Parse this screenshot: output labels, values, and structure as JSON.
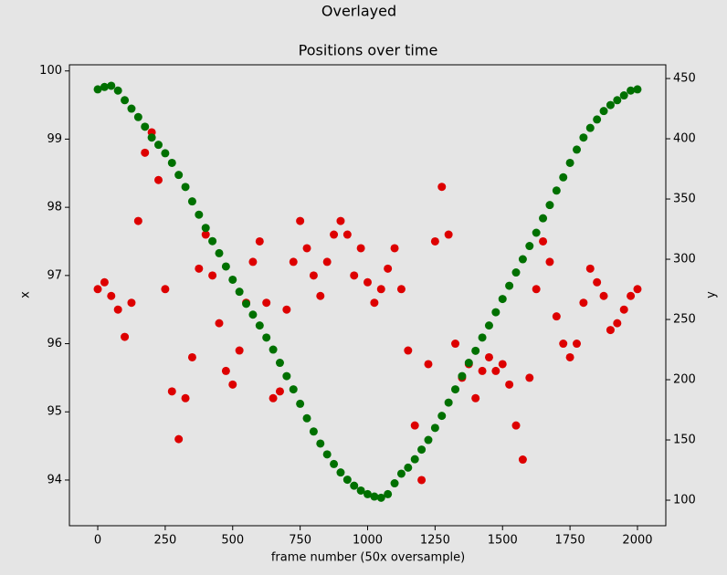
{
  "chart_data": {
    "type": "scatter",
    "suptitle": "Overlayed",
    "title": "Positions over time",
    "xlabel": "frame number (50x oversample)",
    "ylabel": "x",
    "y2label": "y",
    "x": [
      0,
      25,
      50,
      75,
      100,
      125,
      150,
      175,
      200,
      225,
      250,
      275,
      300,
      325,
      350,
      375,
      400,
      425,
      450,
      475,
      500,
      525,
      550,
      575,
      600,
      625,
      650,
      675,
      700,
      725,
      750,
      775,
      800,
      825,
      850,
      875,
      900,
      925,
      950,
      975,
      1000,
      1025,
      1050,
      1075,
      1100,
      1125,
      1150,
      1175,
      1200,
      1225,
      1250,
      1275,
      1300,
      1325,
      1350,
      1375,
      1400,
      1425,
      1450,
      1475,
      1500,
      1525,
      1550,
      1575,
      1600,
      1625,
      1650,
      1675,
      1700,
      1725,
      1750,
      1775,
      1800,
      1825,
      1850,
      1875,
      1900,
      1925,
      1950,
      1975,
      2000
    ],
    "series": [
      {
        "color": "#dd0000",
        "axis": "y",
        "values": [
          96.8,
          96.9,
          96.7,
          96.5,
          96.1,
          96.6,
          97.8,
          98.8,
          99.1,
          98.4,
          96.8,
          95.3,
          94.6,
          95.2,
          95.8,
          97.1,
          97.6,
          97.0,
          96.3,
          95.6,
          95.4,
          95.9,
          96.6,
          97.2,
          97.5,
          96.6,
          95.2,
          95.3,
          96.5,
          97.2,
          97.8,
          97.4,
          97.0,
          96.7,
          97.2,
          97.6,
          97.8,
          97.6,
          97.0,
          97.4,
          96.9,
          96.6,
          96.8,
          97.1,
          97.4,
          96.8,
          95.9,
          94.8,
          94.0,
          95.7,
          97.5,
          98.3,
          97.6,
          96.0,
          95.5,
          95.7,
          95.2,
          95.6,
          95.8,
          95.6,
          95.7,
          95.4,
          94.8,
          94.3,
          95.5,
          96.8,
          97.5,
          97.2,
          96.4,
          96.0,
          95.8,
          96.0,
          96.6,
          97.1,
          96.9,
          96.7,
          96.2,
          96.3,
          96.5,
          96.7,
          96.8
        ]
      },
      {
        "color": "#007000",
        "axis": "y2",
        "values": [
          441,
          443,
          444,
          440,
          432,
          425,
          418,
          410,
          401,
          395,
          388,
          380,
          370,
          360,
          348,
          337,
          326,
          315,
          305,
          294,
          283,
          273,
          263,
          254,
          245,
          235,
          225,
          214,
          203,
          192,
          180,
          168,
          157,
          147,
          138,
          130,
          123,
          117,
          112,
          108,
          105,
          103,
          102,
          105,
          114,
          122,
          127,
          134,
          142,
          150,
          160,
          170,
          181,
          192,
          203,
          214,
          224,
          235,
          245,
          256,
          267,
          278,
          289,
          300,
          311,
          322,
          334,
          345,
          357,
          368,
          380,
          391,
          401,
          409,
          416,
          423,
          428,
          432,
          436,
          440,
          441
        ]
      }
    ],
    "xlim": [
      -105,
      2105
    ],
    "xticks": [
      0,
      250,
      500,
      750,
      1000,
      1250,
      1500,
      1750,
      2000
    ],
    "ylim": [
      93.33,
      100.09
    ],
    "yticks": [
      94,
      95,
      96,
      97,
      98,
      99,
      100
    ],
    "y2lim": [
      78.8,
      461.4
    ],
    "y2ticks": [
      100,
      150,
      200,
      250,
      300,
      350,
      400,
      450
    ],
    "grid": false
  }
}
